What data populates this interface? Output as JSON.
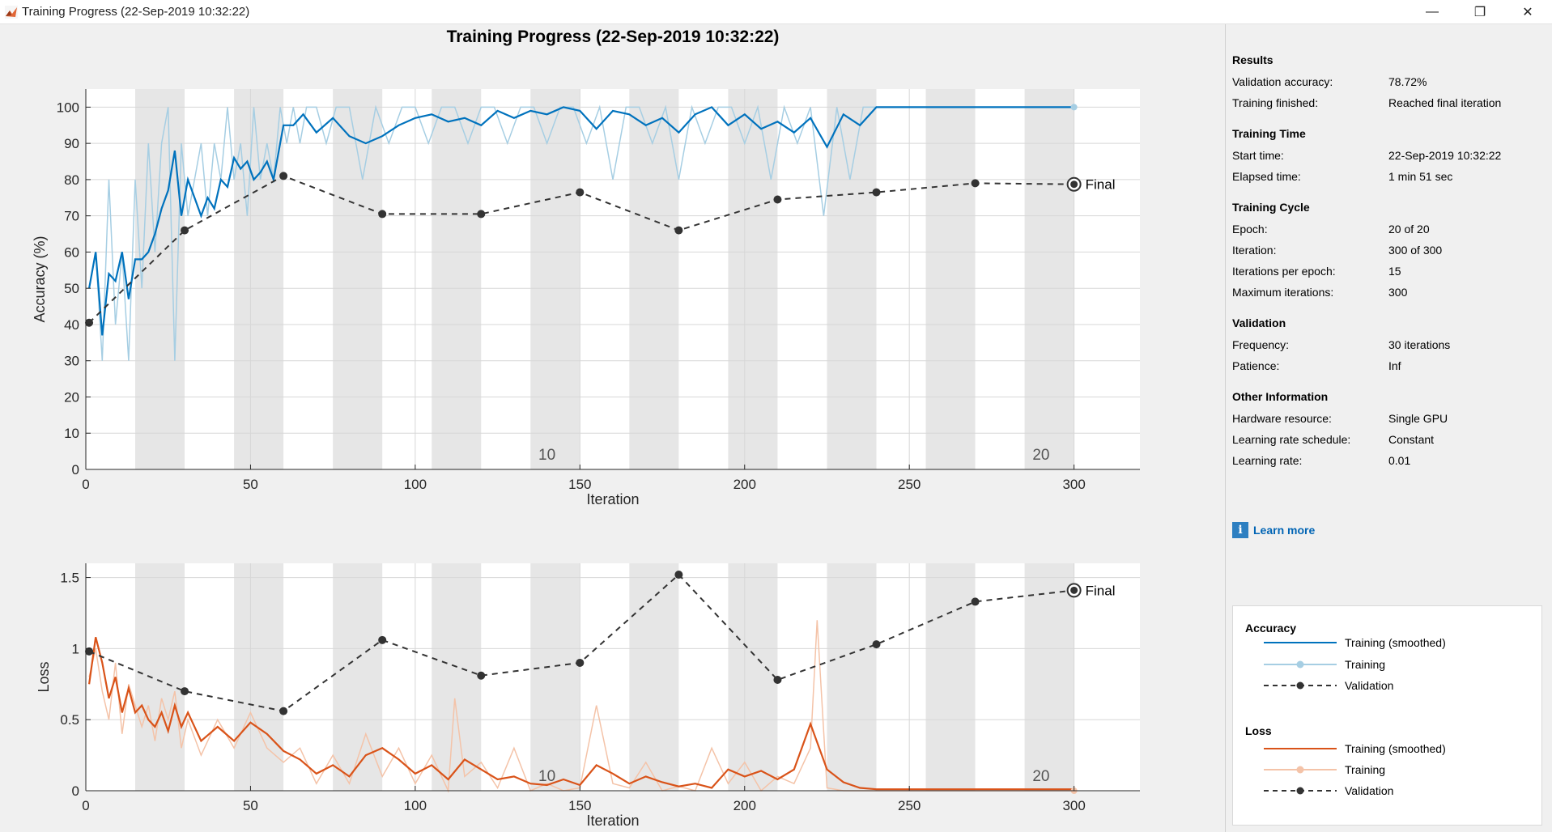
{
  "window": {
    "title": "Training Progress (22-Sep-2019 10:32:22)",
    "controls": {
      "minimize": "—",
      "maximize": "❐",
      "close": "✕"
    }
  },
  "figure_title": "Training Progress (22-Sep-2019 10:32:22)",
  "colors": {
    "accuracy_smoothed": "#0072bd",
    "accuracy_raw": "#a6cee3",
    "loss_smoothed": "#d95319",
    "loss_raw": "#f4c3a8",
    "validation": "#333333",
    "epoch_band": "#e6e6e6",
    "link": "#0064b4"
  },
  "chart_data": [
    {
      "type": "line",
      "ylabel": "Accuracy (%)",
      "xlabel": "Iteration",
      "xlim": [
        0,
        320
      ],
      "ylim": [
        0,
        105
      ],
      "xticks": [
        0,
        50,
        100,
        150,
        200,
        250,
        300
      ],
      "yticks": [
        0,
        10,
        20,
        30,
        40,
        50,
        60,
        70,
        80,
        90,
        100
      ],
      "epoch_labels": [
        {
          "x": 140,
          "text": "10"
        },
        {
          "x": 290,
          "text": "20"
        }
      ],
      "final_label": "Final",
      "series": [
        {
          "name": "Training (smoothed)",
          "style": "smoothed",
          "x": [
            1,
            3,
            5,
            7,
            9,
            11,
            13,
            15,
            17,
            19,
            21,
            23,
            25,
            27,
            29,
            31,
            33,
            35,
            37,
            39,
            41,
            43,
            45,
            47,
            49,
            51,
            53,
            55,
            57,
            60,
            63,
            66,
            70,
            75,
            80,
            85,
            90,
            95,
            100,
            105,
            110,
            115,
            120,
            125,
            130,
            135,
            140,
            145,
            150,
            155,
            160,
            165,
            170,
            175,
            180,
            185,
            190,
            195,
            200,
            205,
            210,
            215,
            220,
            225,
            230,
            235,
            240,
            300
          ],
          "y": [
            50,
            60,
            37,
            54,
            52,
            60,
            47,
            58,
            58,
            60,
            65,
            72,
            77,
            88,
            70,
            80,
            75,
            70,
            75,
            72,
            80,
            78,
            86,
            83,
            85,
            80,
            82,
            85,
            80,
            95,
            95,
            98,
            93,
            97,
            92,
            90,
            92,
            95,
            97,
            98,
            96,
            97,
            95,
            99,
            97,
            99,
            98,
            100,
            99,
            94,
            99,
            98,
            95,
            97,
            93,
            98,
            100,
            95,
            98,
            94,
            96,
            93,
            97,
            89,
            98,
            95,
            100,
            100
          ]
        },
        {
          "name": "Training",
          "style": "raw",
          "x": [
            1,
            3,
            5,
            7,
            9,
            11,
            13,
            15,
            17,
            19,
            21,
            23,
            25,
            27,
            29,
            31,
            33,
            35,
            37,
            39,
            41,
            43,
            45,
            47,
            49,
            51,
            53,
            55,
            57,
            59,
            61,
            63,
            65,
            67,
            70,
            73,
            76,
            80,
            84,
            88,
            92,
            96,
            100,
            104,
            108,
            112,
            116,
            120,
            124,
            128,
            132,
            136,
            140,
            144,
            148,
            152,
            156,
            160,
            164,
            168,
            172,
            176,
            180,
            184,
            188,
            192,
            196,
            200,
            204,
            208,
            212,
            216,
            220,
            224,
            228,
            232,
            236,
            240,
            300
          ],
          "y": [
            50,
            60,
            30,
            80,
            40,
            60,
            30,
            80,
            50,
            90,
            60,
            90,
            100,
            30,
            90,
            70,
            80,
            90,
            70,
            90,
            80,
            100,
            80,
            90,
            70,
            100,
            80,
            90,
            80,
            100,
            90,
            100,
            90,
            100,
            100,
            90,
            100,
            100,
            80,
            100,
            90,
            100,
            100,
            90,
            100,
            100,
            90,
            100,
            100,
            90,
            100,
            100,
            90,
            100,
            100,
            90,
            100,
            80,
            100,
            100,
            90,
            100,
            80,
            100,
            90,
            100,
            100,
            90,
            100,
            80,
            100,
            90,
            100,
            70,
            100,
            80,
            100,
            100,
            100
          ]
        },
        {
          "name": "Validation",
          "style": "validation",
          "x": [
            1,
            30,
            60,
            90,
            120,
            150,
            180,
            210,
            240,
            270,
            300
          ],
          "y": [
            40.5,
            66,
            81,
            70.5,
            70.5,
            76.5,
            66,
            74.5,
            76.5,
            79,
            78.7
          ]
        }
      ]
    },
    {
      "type": "line",
      "ylabel": "Loss",
      "xlabel": "Iteration",
      "xlim": [
        0,
        320
      ],
      "ylim": [
        0,
        1.6
      ],
      "xticks": [
        0,
        50,
        100,
        150,
        200,
        250,
        300
      ],
      "yticks": [
        0,
        0.5,
        1,
        1.5
      ],
      "epoch_labels": [
        {
          "x": 140,
          "text": "10"
        },
        {
          "x": 290,
          "text": "20"
        }
      ],
      "final_label": "Final",
      "series": [
        {
          "name": "Training (smoothed)",
          "style": "smoothed",
          "x": [
            1,
            3,
            5,
            7,
            9,
            11,
            13,
            15,
            17,
            19,
            21,
            23,
            25,
            27,
            29,
            31,
            35,
            40,
            45,
            50,
            55,
            60,
            65,
            70,
            75,
            80,
            85,
            90,
            95,
            100,
            105,
            110,
            115,
            120,
            125,
            130,
            135,
            140,
            145,
            150,
            155,
            160,
            165,
            170,
            175,
            180,
            185,
            190,
            195,
            200,
            205,
            210,
            215,
            220,
            225,
            230,
            235,
            240,
            300
          ],
          "y": [
            0.75,
            1.08,
            0.9,
            0.65,
            0.8,
            0.55,
            0.72,
            0.55,
            0.6,
            0.5,
            0.45,
            0.55,
            0.42,
            0.6,
            0.45,
            0.55,
            0.35,
            0.45,
            0.35,
            0.48,
            0.4,
            0.28,
            0.22,
            0.12,
            0.18,
            0.1,
            0.25,
            0.3,
            0.22,
            0.12,
            0.18,
            0.08,
            0.22,
            0.15,
            0.08,
            0.1,
            0.05,
            0.04,
            0.08,
            0.04,
            0.18,
            0.12,
            0.05,
            0.1,
            0.06,
            0.03,
            0.05,
            0.02,
            0.15,
            0.1,
            0.14,
            0.08,
            0.15,
            0.47,
            0.15,
            0.06,
            0.02,
            0.01,
            0.01
          ]
        },
        {
          "name": "Training",
          "style": "raw",
          "x": [
            1,
            3,
            5,
            7,
            9,
            11,
            13,
            15,
            17,
            19,
            21,
            23,
            25,
            27,
            29,
            31,
            35,
            40,
            45,
            50,
            55,
            60,
            65,
            70,
            75,
            80,
            85,
            90,
            95,
            100,
            105,
            110,
            112,
            115,
            120,
            125,
            130,
            135,
            140,
            145,
            150,
            155,
            160,
            165,
            170,
            175,
            180,
            185,
            190,
            195,
            200,
            205,
            210,
            215,
            220,
            222,
            225,
            230,
            235,
            240,
            300
          ],
          "y": [
            0.8,
            1.0,
            0.7,
            0.5,
            0.9,
            0.4,
            0.75,
            0.6,
            0.45,
            0.6,
            0.35,
            0.65,
            0.5,
            0.7,
            0.3,
            0.5,
            0.25,
            0.5,
            0.3,
            0.55,
            0.3,
            0.2,
            0.3,
            0.05,
            0.25,
            0.05,
            0.4,
            0.1,
            0.3,
            0.05,
            0.25,
            0.0,
            0.65,
            0.1,
            0.2,
            0.02,
            0.3,
            0.0,
            0.05,
            0.0,
            0.02,
            0.6,
            0.05,
            0.02,
            0.2,
            0.0,
            0.03,
            0.0,
            0.3,
            0.05,
            0.2,
            0.0,
            0.1,
            0.05,
            0.3,
            1.2,
            0.02,
            0.0,
            0.0,
            0.0,
            0.0
          ]
        },
        {
          "name": "Validation",
          "style": "validation",
          "x": [
            1,
            30,
            60,
            90,
            120,
            150,
            180,
            210,
            240,
            270,
            300
          ],
          "y": [
            0.98,
            0.7,
            0.56,
            1.06,
            0.81,
            0.9,
            1.52,
            0.78,
            1.03,
            1.33,
            1.41
          ]
        }
      ]
    }
  ],
  "results": {
    "title": "Results",
    "rows": [
      {
        "label": "Validation accuracy:",
        "value": "78.72%"
      },
      {
        "label": "Training finished:",
        "value": "Reached final iteration"
      }
    ]
  },
  "training_time": {
    "title": "Training Time",
    "rows": [
      {
        "label": "Start time:",
        "value": "22-Sep-2019 10:32:22"
      },
      {
        "label": "Elapsed time:",
        "value": "1 min 51 sec"
      }
    ]
  },
  "training_cycle": {
    "title": "Training Cycle",
    "rows": [
      {
        "label": "Epoch:",
        "value": "20 of 20"
      },
      {
        "label": "Iteration:",
        "value": "300 of 300"
      },
      {
        "label": "Iterations per epoch:",
        "value": "15"
      },
      {
        "label": "Maximum iterations:",
        "value": "300"
      }
    ]
  },
  "validation": {
    "title": "Validation",
    "rows": [
      {
        "label": "Frequency:",
        "value": "30 iterations"
      },
      {
        "label": "Patience:",
        "value": "Inf"
      }
    ]
  },
  "other_info": {
    "title": "Other Information",
    "rows": [
      {
        "label": "Hardware resource:",
        "value": "Single GPU"
      },
      {
        "label": "Learning rate schedule:",
        "value": "Constant"
      },
      {
        "label": "Learning rate:",
        "value": "0.01"
      }
    ]
  },
  "learn_more": {
    "icon": "info-icon",
    "label": "Learn more"
  },
  "legend": {
    "accuracy_title": "Accuracy",
    "loss_title": "Loss",
    "entries": [
      "Training (smoothed)",
      "Training",
      "Validation"
    ]
  }
}
